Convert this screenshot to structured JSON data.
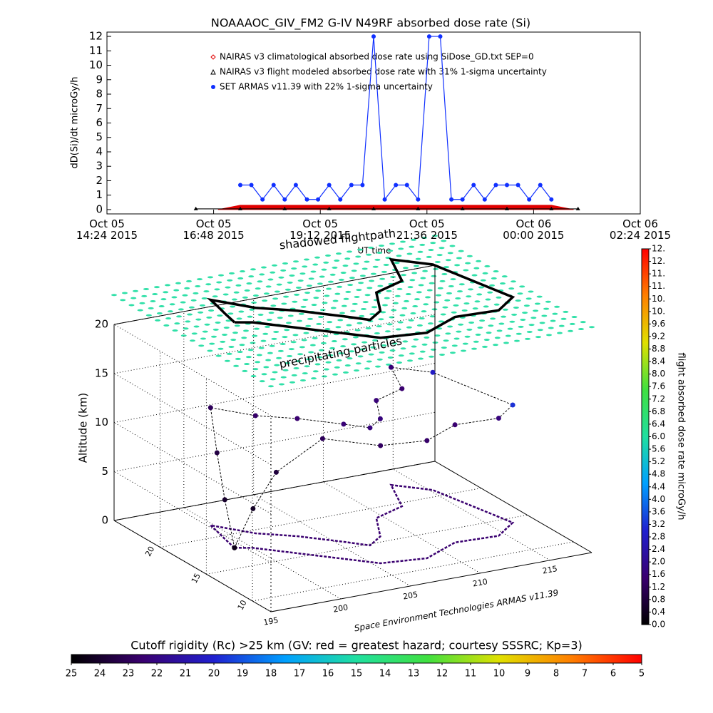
{
  "title": "NOAAAOC_GIV_FM2 G-IV   N49RF  absorbed dose rate (Si)",
  "chart_data": [
    {
      "type": "line",
      "ylabel": "dD(Si)/dt microGy/h",
      "xlabel": "UT time",
      "xlim": [
        "2015-10-05T14:24",
        "2015-10-06T02:24"
      ],
      "xticks": [
        {
          "value": "2015-10-05T14:24",
          "label": "Oct 05\n14:24 2015"
        },
        {
          "value": "2015-10-05T16:48",
          "label": "Oct 05\n16:48 2015"
        },
        {
          "value": "2015-10-05T19:12",
          "label": "Oct 05\n19:12 2015"
        },
        {
          "value": "2015-10-05T21:36",
          "label": "Oct 05\n21:36 2015"
        },
        {
          "value": "2015-10-06T00:00",
          "label": "Oct 06\n00:00 2015"
        },
        {
          "value": "2015-10-06T02:24",
          "label": "Oct 06\n02:24 2015"
        }
      ],
      "ylim": [
        -0.3,
        12.3
      ],
      "yticks": [
        0,
        1,
        2,
        3,
        4,
        5,
        6,
        7,
        8,
        9,
        10,
        11,
        12
      ],
      "series": [
        {
          "name": "NAIRAS v3 climatological absorbed dose rate using SiDose_GD.txt SEP=0",
          "color": "#e00000",
          "marker": "diamond",
          "x": [
            "2015-10-05T16:54",
            "2015-10-05T17:24",
            "2015-10-05T18:24",
            "2015-10-05T19:24",
            "2015-10-05T20:24",
            "2015-10-05T21:24",
            "2015-10-05T22:24",
            "2015-10-05T23:24",
            "2015-10-06T00:24",
            "2015-10-06T00:54"
          ],
          "values": [
            0,
            0.3,
            0.3,
            0.3,
            0.3,
            0.3,
            0.3,
            0.3,
            0.3,
            0
          ]
        },
        {
          "name": "NAIRAS v3 flight modeled absorbed dose rate with 31% 1-sigma uncertainty",
          "color": "#000000",
          "marker": "triangle",
          "x": [
            "2015-10-05T16:24",
            "2015-10-05T17:24",
            "2015-10-05T18:24",
            "2015-10-05T19:24",
            "2015-10-05T20:24",
            "2015-10-05T21:24",
            "2015-10-05T22:24",
            "2015-10-05T23:24",
            "2015-10-06T00:24",
            "2015-10-06T01:00"
          ],
          "values": [
            0.05,
            0.05,
            0.05,
            0.05,
            0.05,
            0.05,
            0.05,
            0.05,
            0.05,
            0.05
          ]
        },
        {
          "name": "SET ARMAS v11.39 with 22% 1-sigma uncertainty",
          "color": "#1030ff",
          "marker": "circle",
          "x": [
            "2015-10-05T17:24",
            "2015-10-05T17:39",
            "2015-10-05T17:54",
            "2015-10-05T18:09",
            "2015-10-05T18:24",
            "2015-10-05T18:39",
            "2015-10-05T18:54",
            "2015-10-05T19:09",
            "2015-10-05T19:24",
            "2015-10-05T19:39",
            "2015-10-05T19:54",
            "2015-10-05T20:09",
            "2015-10-05T20:24",
            "2015-10-05T20:39",
            "2015-10-05T20:54",
            "2015-10-05T21:09",
            "2015-10-05T21:24",
            "2015-10-05T21:39",
            "2015-10-05T21:54",
            "2015-10-05T22:09",
            "2015-10-05T22:24",
            "2015-10-05T22:39",
            "2015-10-05T22:54",
            "2015-10-05T23:09",
            "2015-10-05T23:24",
            "2015-10-05T23:39",
            "2015-10-05T23:54",
            "2015-10-06T00:09",
            "2015-10-06T00:24"
          ],
          "values": [
            1.7,
            1.7,
            0.7,
            1.7,
            0.7,
            1.7,
            0.7,
            0.7,
            1.7,
            0.7,
            1.7,
            1.7,
            12,
            0.7,
            1.7,
            1.7,
            0.7,
            12,
            12,
            0.7,
            0.7,
            1.7,
            0.7,
            1.7,
            1.7,
            1.7,
            0.7,
            1.7,
            0.7
          ]
        }
      ]
    },
    {
      "type": "scatter3d",
      "annotations": [
        "shadowed flightpath",
        "precipitating particles"
      ],
      "zlabel": "Altitude (km)",
      "caption": "Space Environment Technologies ARMAS v11.39",
      "xlim": [
        195,
        218
      ],
      "ylim": [
        8,
        25
      ],
      "zlim": [
        0,
        20
      ],
      "xticks": [
        195,
        200,
        205,
        210,
        215
      ],
      "yticks": [
        10,
        15,
        20
      ],
      "zticks": [
        0,
        5,
        10,
        15,
        20
      ],
      "particles_color": "#30e0a8",
      "lon": [
        199.0,
        199.3,
        199.6,
        199.8,
        201.5,
        203.5,
        205.5,
        206.6,
        208.0,
        209.5,
        212.0,
        213.4,
        215.2,
        216.5,
        214.5,
        211.5,
        208.5,
        205.5,
        203.0,
        201.0,
        200.0,
        199.0
      ],
      "lat": [
        18.0,
        19.5,
        20.8,
        21.8,
        19.5,
        18.0,
        16.0,
        14.8,
        15.8,
        18.5,
        19.5,
        22.8,
        21.0,
        14.3,
        12.8,
        13.0,
        11.5,
        12.0,
        14.5,
        16.5,
        17.5,
        18.0
      ],
      "alt": [
        0,
        4,
        8,
        12,
        12,
        12,
        12,
        12,
        12,
        12,
        12,
        12,
        12,
        12,
        12,
        12,
        12,
        12,
        12,
        8,
        4,
        0
      ],
      "dose": [
        0.4,
        0.6,
        0.9,
        1.2,
        1.4,
        1.5,
        1.6,
        1.7,
        1.7,
        1.6,
        1.5,
        1.6,
        2.8,
        3.2,
        1.7,
        1.5,
        1.4,
        1.3,
        1.2,
        0.8,
        0.5,
        0.3
      ]
    },
    {
      "type": "colorbar",
      "orientation": "vertical",
      "label": "flight absorbed dose rate microGy/h",
      "colors": [
        "#000000",
        "#3a0070",
        "#2020d0",
        "#00a0ff",
        "#20e0a0",
        "#40e040",
        "#e0e000",
        "#ff8000",
        "#ff0000"
      ],
      "ylim": [
        0,
        12
      ],
      "yticks": [
        {
          "value": 0,
          "label": "0.0"
        },
        0.4,
        0.8,
        1.2,
        1.6,
        {
          "value": 2,
          "label": "2.0"
        },
        2.4,
        2.8,
        3.2,
        3.6,
        {
          "value": 4,
          "label": "4.0"
        },
        4.4,
        4.8,
        5.2,
        5.6,
        {
          "value": 6,
          "label": "6.0"
        },
        6.4,
        6.8,
        7.2,
        7.6,
        {
          "value": 8,
          "label": "8.0"
        },
        8.4,
        8.8,
        9.2,
        9.6,
        {
          "value": 10,
          "label": "10."
        },
        {
          "value": 10.4,
          "label": "10."
        },
        {
          "value": 10.8,
          "label": "11."
        },
        {
          "value": 11.2,
          "label": "11."
        },
        {
          "value": 11.6,
          "label": "12."
        },
        {
          "value": 12,
          "label": "12."
        }
      ]
    },
    {
      "type": "colorbar",
      "orientation": "horizontal",
      "label": "Cutoff rigidity (Rc) >25 km (GV: red = greatest hazard; courtesy SSSRC; Kp=3)",
      "colors": [
        "#000000",
        "#3a0070",
        "#2020d0",
        "#00a0ff",
        "#20e0a0",
        "#40e040",
        "#e0e000",
        "#ff8000",
        "#ff0000"
      ],
      "xlim": [
        25,
        5
      ],
      "xticks": [
        25,
        24,
        23,
        22,
        21,
        20,
        19,
        18,
        17,
        16,
        15,
        14,
        13,
        12,
        11,
        10,
        9,
        8,
        7,
        6,
        5
      ]
    }
  ]
}
